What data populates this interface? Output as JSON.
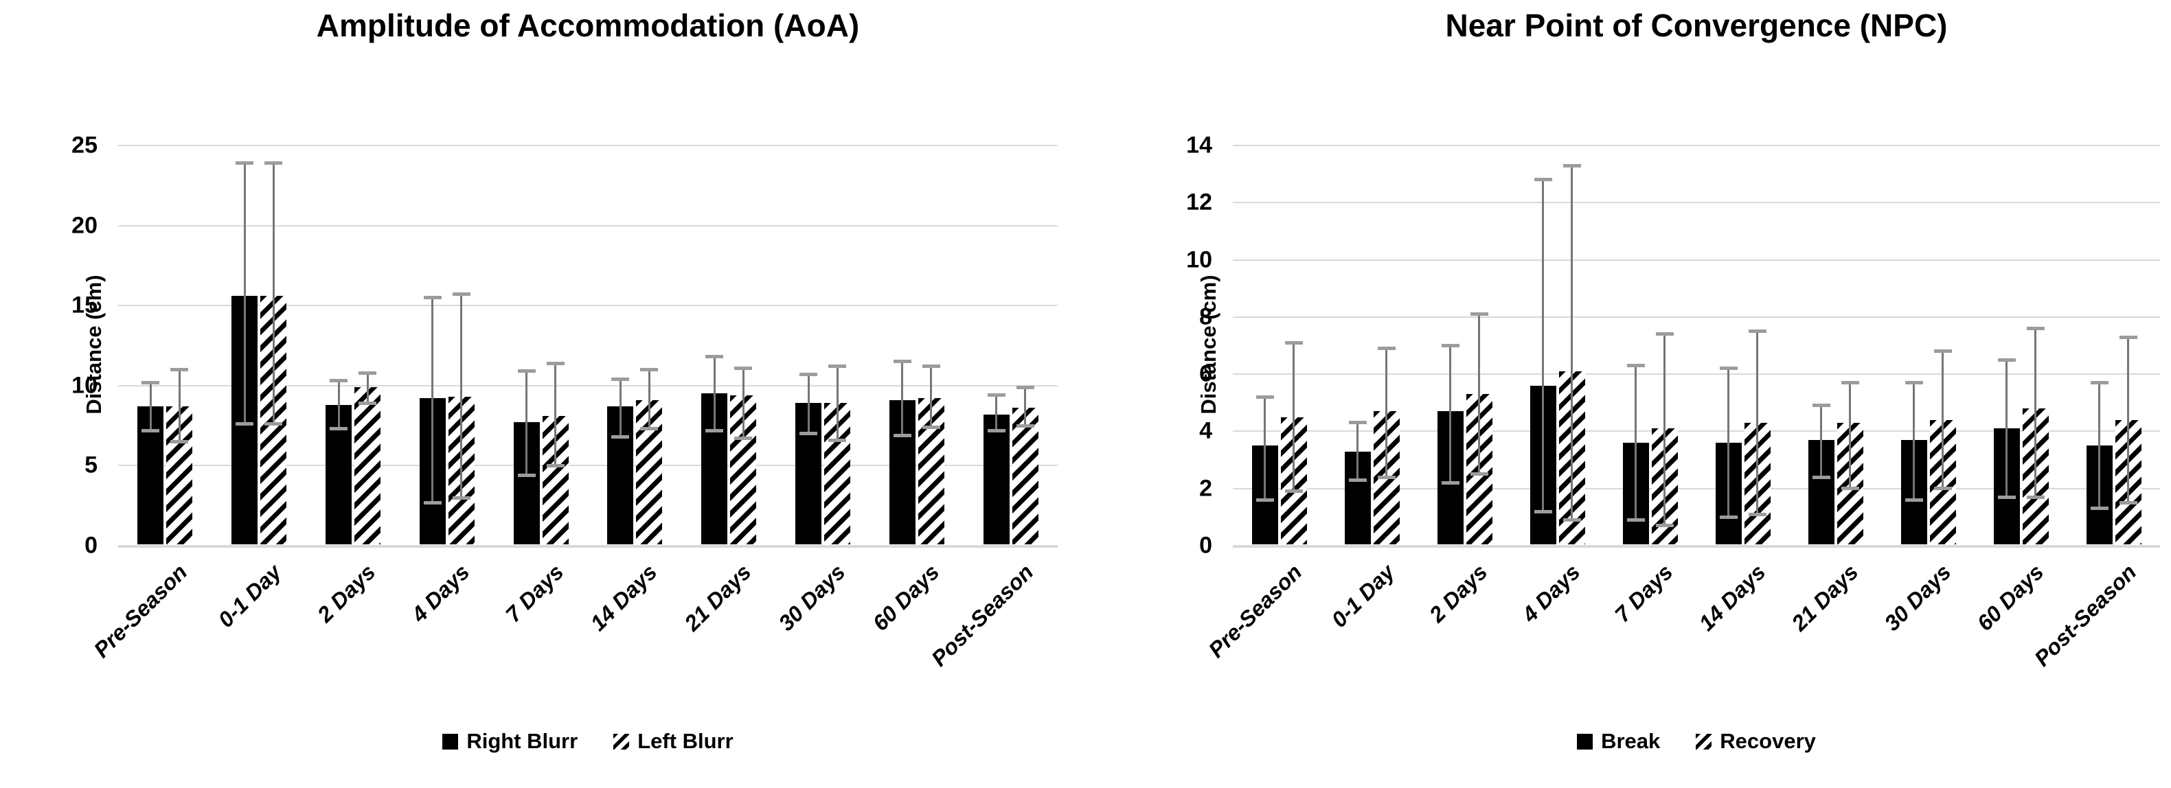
{
  "figure_title": "",
  "colors": {
    "bar_fill": "#000000",
    "hatch_foreground": "#000000",
    "hatch_background": "#ffffff",
    "error_line": "#767676",
    "error_cap": "#9c9c9c",
    "gridline": "#d9d9d9",
    "text": "#000000",
    "background": "#ffffff"
  },
  "chart_data": [
    {
      "type": "bar",
      "title": "Amplitude of Accommodation (AoA)",
      "xlabel": "",
      "ylabel": "Distance (cm)",
      "ylim": [
        0,
        25
      ],
      "yticks": [
        0,
        5,
        10,
        15,
        20,
        25
      ],
      "grid": true,
      "legend_position": "bottom",
      "categories": [
        "Pre-Season",
        "0-1 Day",
        "2 Days",
        "4 Days",
        "7 Days",
        "14 Days",
        "21 Days",
        "30 Days",
        "60 Days",
        "Post-Season"
      ],
      "series": [
        {
          "name": "Right Blurr",
          "style": "solid",
          "values": [
            8.7,
            15.6,
            8.8,
            9.2,
            7.7,
            8.7,
            9.5,
            8.9,
            9.1,
            8.2
          ],
          "err_low": [
            7.2,
            7.6,
            7.3,
            2.7,
            4.4,
            6.8,
            7.2,
            7.0,
            6.9,
            7.2
          ],
          "err_high": [
            10.2,
            23.9,
            10.3,
            15.5,
            10.9,
            10.4,
            11.8,
            10.7,
            11.5,
            9.4
          ]
        },
        {
          "name": "Left Blurr",
          "style": "hatch",
          "values": [
            8.7,
            15.6,
            9.9,
            9.3,
            8.1,
            9.1,
            9.4,
            8.9,
            9.2,
            8.6
          ],
          "err_low": [
            6.5,
            7.6,
            8.9,
            3.0,
            5.0,
            7.3,
            6.7,
            6.6,
            7.4,
            7.5
          ],
          "err_high": [
            11.0,
            23.9,
            10.8,
            15.7,
            11.4,
            11.0,
            11.1,
            11.2,
            11.2,
            9.9
          ]
        }
      ]
    },
    {
      "type": "bar",
      "title": "Near Point of Convergence (NPC)",
      "xlabel": "",
      "ylabel": "Distance (cm)",
      "ylim": [
        0,
        14
      ],
      "yticks": [
        0,
        2,
        4,
        6,
        8,
        10,
        12,
        14
      ],
      "grid": true,
      "legend_position": "bottom",
      "categories": [
        "Pre-Season",
        "0-1 Day",
        "2 Days",
        "4 Days",
        "7 Days",
        "14 Days",
        "21 Days",
        "30 Days",
        "60 Days",
        "Post-Season"
      ],
      "series": [
        {
          "name": "Break",
          "style": "solid",
          "values": [
            3.5,
            3.3,
            4.7,
            5.6,
            3.6,
            3.6,
            3.7,
            3.7,
            4.1,
            3.5
          ],
          "err_low": [
            1.6,
            2.3,
            2.2,
            1.2,
            0.9,
            1.0,
            2.4,
            1.6,
            1.7,
            1.3
          ],
          "err_high": [
            5.2,
            4.3,
            7.0,
            12.8,
            6.3,
            6.2,
            4.9,
            5.7,
            6.5,
            5.7
          ]
        },
        {
          "name": "Recovery",
          "style": "hatch",
          "values": [
            4.5,
            4.7,
            5.3,
            6.1,
            4.1,
            4.3,
            4.3,
            4.4,
            4.8,
            4.4
          ],
          "err_low": [
            1.9,
            2.4,
            2.5,
            0.9,
            0.7,
            1.1,
            2.0,
            2.0,
            1.7,
            1.5
          ],
          "err_high": [
            7.1,
            6.9,
            8.1,
            13.3,
            7.4,
            7.5,
            5.7,
            6.8,
            7.6,
            7.3
          ]
        }
      ]
    }
  ]
}
